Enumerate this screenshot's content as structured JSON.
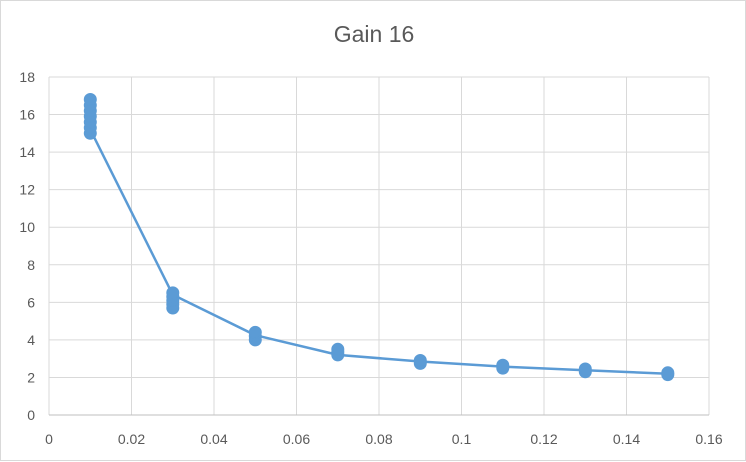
{
  "chart_data": {
    "type": "scatter",
    "title": "Gain 16",
    "xlabel": "",
    "ylabel": "",
    "xlim": [
      0,
      0.16
    ],
    "ylim": [
      0,
      18
    ],
    "xticks": [
      0,
      0.02,
      0.04,
      0.06,
      0.08,
      0.1,
      0.12,
      0.14,
      0.16
    ],
    "xtick_labels": [
      "0",
      "0.02",
      "0.04",
      "0.06",
      "0.08",
      "0.1",
      "0.12",
      "0.14",
      "0.16"
    ],
    "yticks": [
      0,
      2,
      4,
      6,
      8,
      10,
      12,
      14,
      16,
      18
    ],
    "ytick_labels": [
      "0",
      "2",
      "4",
      "6",
      "8",
      "10",
      "12",
      "14",
      "16",
      "18"
    ],
    "grid": true,
    "legend": "none",
    "color": "#5b9bd5",
    "series": [
      {
        "points": [
          [
            0.01,
            15.0
          ],
          [
            0.01,
            15.3
          ],
          [
            0.01,
            15.6
          ],
          [
            0.01,
            15.9
          ],
          [
            0.01,
            16.2
          ],
          [
            0.01,
            16.5
          ],
          [
            0.01,
            16.8
          ],
          [
            0.03,
            5.7
          ],
          [
            0.03,
            5.9
          ],
          [
            0.03,
            6.1
          ],
          [
            0.03,
            6.3
          ],
          [
            0.03,
            6.5
          ],
          [
            0.05,
            4.0
          ],
          [
            0.05,
            4.2
          ],
          [
            0.05,
            4.4
          ],
          [
            0.07,
            3.2
          ],
          [
            0.07,
            3.35
          ],
          [
            0.07,
            3.5
          ],
          [
            0.09,
            2.75
          ],
          [
            0.09,
            2.9
          ],
          [
            0.11,
            2.5
          ],
          [
            0.11,
            2.65
          ],
          [
            0.13,
            2.3
          ],
          [
            0.13,
            2.45
          ],
          [
            0.15,
            2.15
          ],
          [
            0.15,
            2.25
          ]
        ],
        "trend": [
          [
            0.01,
            15.2
          ],
          [
            0.03,
            6.4
          ],
          [
            0.05,
            4.25
          ],
          [
            0.07,
            3.2
          ],
          [
            0.09,
            2.85
          ],
          [
            0.11,
            2.58
          ],
          [
            0.13,
            2.38
          ],
          [
            0.15,
            2.2
          ]
        ]
      }
    ]
  }
}
